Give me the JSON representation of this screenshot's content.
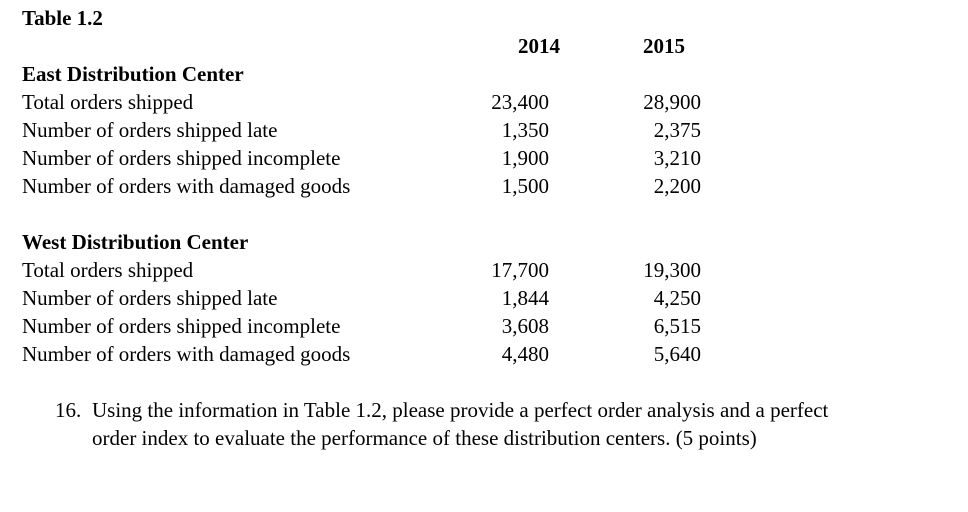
{
  "table": {
    "title": "Table 1.2",
    "years": [
      "2014",
      "2015"
    ],
    "sections": [
      {
        "name": "East Distribution Center",
        "rows": [
          {
            "label": "Total orders shipped",
            "y2014": "23,400",
            "y2015": "28,900"
          },
          {
            "label": "Number of orders shipped late",
            "y2014": "1,350",
            "y2015": "2,375"
          },
          {
            "label": "Number of orders shipped incomplete",
            "y2014": "1,900",
            "y2015": "3,210"
          },
          {
            "label": "Number of orders with damaged goods",
            "y2014": "1,500",
            "y2015": "2,200"
          }
        ]
      },
      {
        "name": "West Distribution Center",
        "rows": [
          {
            "label": "Total orders shipped",
            "y2014": "17,700",
            "y2015": "19,300"
          },
          {
            "label": "Number of orders shipped late",
            "y2014": "1,844",
            "y2015": "4,250"
          },
          {
            "label": "Number of orders shipped incomplete",
            "y2014": "3,608",
            "y2015": "6,515"
          },
          {
            "label": "Number of orders with damaged goods",
            "y2014": "4,480",
            "y2015": "5,640"
          }
        ]
      }
    ]
  },
  "question": {
    "number": "16.",
    "lines": [
      "Using the information in Table 1.2, please provide a perfect order analysis and a perfect",
      "order index to evaluate the performance of these distribution centers. (5 points)"
    ],
    "full_text": "16. Using the information in Table 1.2, please provide a perfect order analysis and a perfect order index to evaluate the performance of these distribution centers. (5 points)"
  }
}
